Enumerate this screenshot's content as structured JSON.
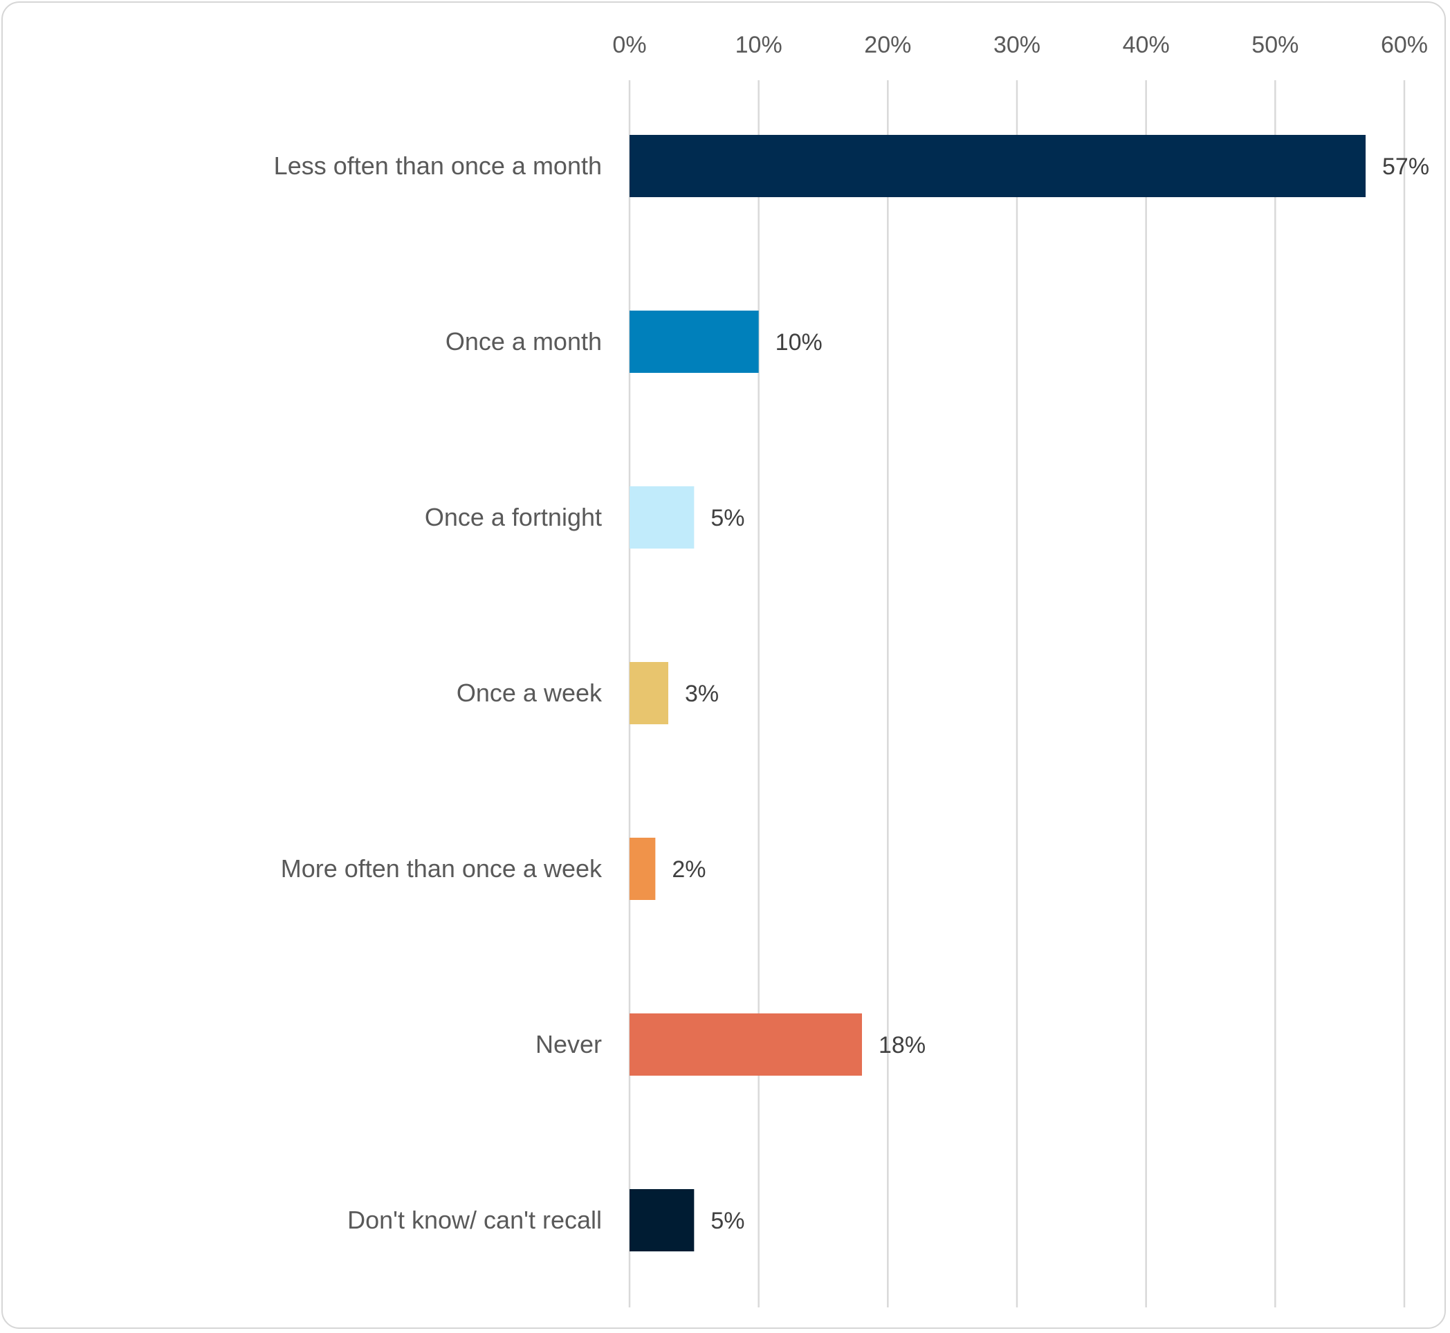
{
  "chart_data": {
    "type": "bar",
    "orientation": "horizontal",
    "categories": [
      "Less often than once a month",
      "Once a month",
      "Once a fortnight",
      "Once a week",
      "More often than once a week",
      "Never",
      "Don't know/ can't recall"
    ],
    "values": [
      57,
      10,
      5,
      3,
      2,
      18,
      5
    ],
    "value_labels": [
      "57%",
      "10%",
      "5%",
      "3%",
      "2%",
      "18%",
      "5%"
    ],
    "colors": [
      "#002b50",
      "#0080bb",
      "#c1ebfb",
      "#e8c56e",
      "#f0934a",
      "#e46f52",
      "#001c33"
    ],
    "xlim": [
      0,
      60
    ],
    "x_ticks": [
      0,
      10,
      20,
      30,
      40,
      50,
      60
    ],
    "x_tick_labels": [
      "0%",
      "10%",
      "20%",
      "30%",
      "40%",
      "50%",
      "60%"
    ],
    "x_axis_position": "top",
    "grid": true,
    "title": "",
    "xlabel": "",
    "ylabel": ""
  }
}
